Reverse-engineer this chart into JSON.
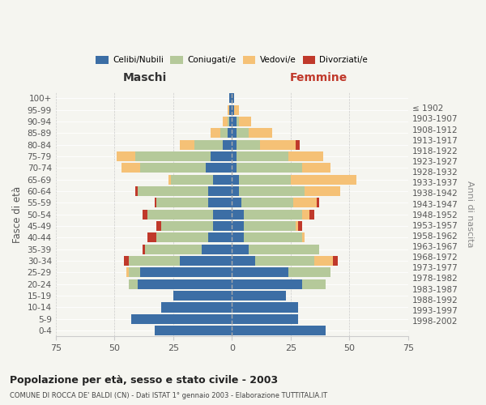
{
  "age_groups": [
    "0-4",
    "5-9",
    "10-14",
    "15-19",
    "20-24",
    "25-29",
    "30-34",
    "35-39",
    "40-44",
    "45-49",
    "50-54",
    "55-59",
    "60-64",
    "65-69",
    "70-74",
    "75-79",
    "80-84",
    "85-89",
    "90-94",
    "95-99",
    "100+"
  ],
  "birth_years": [
    "1998-2002",
    "1993-1997",
    "1988-1992",
    "1983-1987",
    "1978-1982",
    "1973-1977",
    "1968-1972",
    "1963-1967",
    "1958-1962",
    "1953-1957",
    "1948-1952",
    "1943-1947",
    "1938-1942",
    "1933-1937",
    "1928-1932",
    "1923-1927",
    "1918-1922",
    "1913-1917",
    "1908-1912",
    "1903-1907",
    "≤ 1902"
  ],
  "colors": {
    "celibe": "#3c6ea5",
    "coniugato": "#b5c99a",
    "vedovo": "#f5c176",
    "divorziato": "#c0392b"
  },
  "maschi": {
    "celibe": [
      33,
      43,
      30,
      25,
      40,
      39,
      22,
      13,
      10,
      8,
      8,
      10,
      10,
      8,
      11,
      9,
      4,
      2,
      1,
      1,
      1
    ],
    "coniugato": [
      0,
      0,
      0,
      0,
      4,
      5,
      22,
      24,
      22,
      22,
      28,
      22,
      30,
      18,
      28,
      32,
      12,
      3,
      1,
      0,
      0
    ],
    "vedovo": [
      0,
      0,
      0,
      0,
      0,
      1,
      0,
      0,
      0,
      0,
      0,
      0,
      0,
      1,
      8,
      8,
      6,
      4,
      2,
      1,
      0
    ],
    "divorziato": [
      0,
      0,
      0,
      0,
      0,
      0,
      2,
      1,
      4,
      2,
      2,
      1,
      1,
      0,
      0,
      0,
      0,
      0,
      0,
      0,
      0
    ]
  },
  "femmine": {
    "nubile": [
      40,
      28,
      28,
      23,
      30,
      24,
      10,
      7,
      5,
      5,
      5,
      4,
      3,
      3,
      2,
      2,
      2,
      2,
      2,
      1,
      1
    ],
    "coniugata": [
      0,
      0,
      0,
      0,
      10,
      18,
      25,
      30,
      25,
      22,
      25,
      22,
      28,
      22,
      28,
      22,
      10,
      5,
      1,
      0,
      0
    ],
    "vedova": [
      0,
      0,
      0,
      0,
      0,
      0,
      8,
      0,
      1,
      1,
      3,
      10,
      15,
      28,
      12,
      15,
      15,
      10,
      5,
      2,
      0
    ],
    "divorziata": [
      0,
      0,
      0,
      0,
      0,
      0,
      2,
      0,
      0,
      2,
      2,
      1,
      0,
      0,
      0,
      0,
      2,
      0,
      0,
      0,
      0
    ]
  },
  "xlim": 75,
  "title": "Popolazione per età, sesso e stato civile - 2003",
  "subtitle": "COMUNE DI ROCCA DE' BALDI (CN) - Dati ISTAT 1° gennaio 2003 - Elaborazione TUTTITALIA.IT",
  "ylabel": "Fasce di età",
  "ylabel_right": "Anni di nascita",
  "xlabel_left": "Maschi",
  "xlabel_right": "Femmine",
  "background_color": "#f5f5f0"
}
